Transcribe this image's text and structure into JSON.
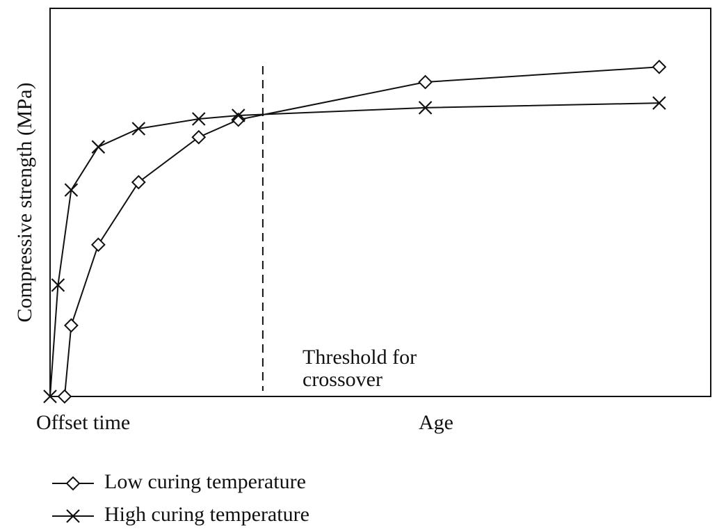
{
  "chart_data": {
    "type": "line",
    "xlabel_left": "Offset time",
    "xlabel": "Age",
    "ylabel": "Compressive strength (MPa)",
    "annotation": [
      "Threshold for",
      "crossover"
    ],
    "threshold_x": 32.2,
    "xlim": [
      0,
      100
    ],
    "ylim": [
      0,
      100
    ],
    "series": [
      {
        "name": "Low curing temperature",
        "marker": "diamond",
        "color": "#111111",
        "x": [
          2.2,
          3.2,
          7.3,
          13.4,
          22.5,
          28.5,
          56.8,
          92.2
        ],
        "values": [
          0,
          18.3,
          39.1,
          55.2,
          66.8,
          71.3,
          81.0,
          84.9
        ]
      },
      {
        "name": "High curing temperature",
        "marker": "x",
        "color": "#111111",
        "x": [
          0,
          1.2,
          3.2,
          7.3,
          13.4,
          22.5,
          28.5,
          56.8,
          92.2
        ],
        "values": [
          0,
          28.7,
          53.2,
          64.3,
          69.0,
          71.5,
          72.4,
          74.4,
          75.6
        ]
      }
    ]
  }
}
